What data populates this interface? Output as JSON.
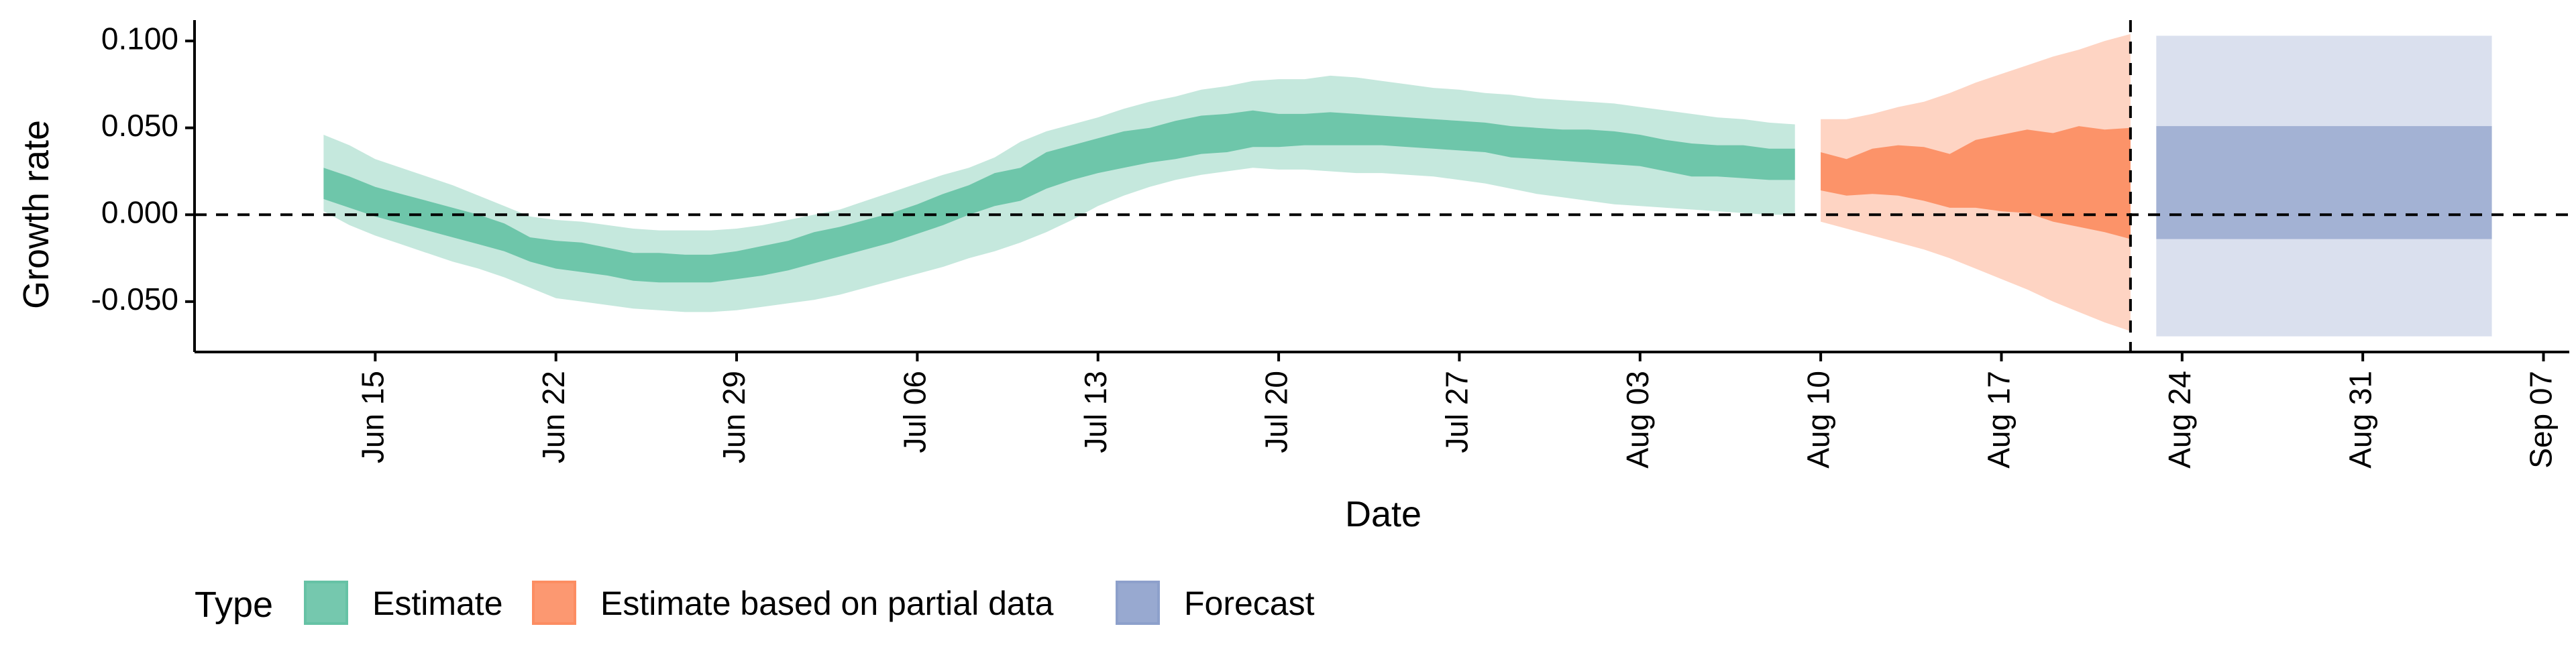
{
  "chart_data": {
    "type": "area",
    "xlabel": "Date",
    "ylabel": "Growth rate",
    "xlim": [
      "2020-06-08",
      "2020-09-08"
    ],
    "ylim": [
      -0.079,
      0.112
    ],
    "x_ticks": [
      "2020-06-15",
      "2020-06-22",
      "2020-06-29",
      "2020-07-06",
      "2020-07-13",
      "2020-07-20",
      "2020-07-27",
      "2020-08-03",
      "2020-08-10",
      "2020-08-17",
      "2020-08-24",
      "2020-08-31",
      "2020-09-07"
    ],
    "x_tick_labels": [
      "Jun 15",
      "Jun 22",
      "Jun 29",
      "Jul 06",
      "Jul 13",
      "Jul 20",
      "Jul 27",
      "Aug 03",
      "Aug 10",
      "Aug 17",
      "Aug 24",
      "Aug 31",
      "Sep 07"
    ],
    "y_ticks": [
      0.1,
      0.05,
      0.0,
      -0.05
    ],
    "y_tick_labels": [
      "0.100",
      "0.050",
      "0.000",
      "-0.050"
    ],
    "reference_lines": {
      "horizontal_y": 0.0,
      "vertical_x": "2020-08-22"
    },
    "grid": false,
    "legend": {
      "title": "Type",
      "position": "bottom-left",
      "entries": [
        "Estimate",
        "Estimate based on partial data",
        "Forecast"
      ]
    },
    "series": [
      {
        "name": "Estimate",
        "color": "#66C2A5",
        "x_start": "2020-06-13",
        "daily": {
          "outer_lower": [
            0.002,
            -0.006,
            -0.012,
            -0.017,
            -0.022,
            -0.027,
            -0.031,
            -0.036,
            -0.042,
            -0.048,
            -0.05,
            -0.052,
            -0.054,
            -0.055,
            -0.056,
            -0.056,
            -0.055,
            -0.053,
            -0.051,
            -0.049,
            -0.046,
            -0.042,
            -0.038,
            -0.034,
            -0.03,
            -0.025,
            -0.021,
            -0.016,
            -0.01,
            -0.003,
            0.005,
            0.011,
            0.016,
            0.02,
            0.023,
            0.025,
            0.027,
            0.026,
            0.026,
            0.025,
            0.024,
            0.024,
            0.023,
            0.022,
            0.02,
            0.018,
            0.015,
            0.012,
            0.01,
            0.008,
            0.006,
            0.005,
            0.004,
            0.003,
            0.002,
            0.001,
            0.0,
            0.0
          ],
          "inner_lower": [
            0.009,
            0.004,
            -0.001,
            -0.005,
            -0.009,
            -0.013,
            -0.017,
            -0.021,
            -0.027,
            -0.031,
            -0.033,
            -0.035,
            -0.038,
            -0.039,
            -0.039,
            -0.039,
            -0.037,
            -0.035,
            -0.032,
            -0.028,
            -0.024,
            -0.02,
            -0.016,
            -0.011,
            -0.006,
            0.0,
            0.005,
            0.008,
            0.015,
            0.02,
            0.024,
            0.027,
            0.03,
            0.032,
            0.035,
            0.036,
            0.039,
            0.039,
            0.04,
            0.04,
            0.04,
            0.04,
            0.039,
            0.038,
            0.037,
            0.036,
            0.033,
            0.032,
            0.031,
            0.03,
            0.029,
            0.028,
            0.025,
            0.022,
            0.022,
            0.021,
            0.02,
            0.02
          ],
          "inner_upper": [
            0.027,
            0.022,
            0.016,
            0.012,
            0.008,
            0.004,
            0.0,
            -0.005,
            -0.013,
            -0.015,
            -0.016,
            -0.019,
            -0.022,
            -0.022,
            -0.023,
            -0.023,
            -0.021,
            -0.018,
            -0.015,
            -0.01,
            -0.007,
            -0.003,
            0.001,
            0.006,
            0.012,
            0.017,
            0.024,
            0.027,
            0.036,
            0.04,
            0.044,
            0.048,
            0.05,
            0.054,
            0.057,
            0.058,
            0.06,
            0.058,
            0.058,
            0.059,
            0.058,
            0.057,
            0.056,
            0.055,
            0.054,
            0.053,
            0.051,
            0.05,
            0.049,
            0.049,
            0.048,
            0.046,
            0.043,
            0.041,
            0.04,
            0.04,
            0.038,
            0.038
          ],
          "outer_upper": [
            0.046,
            0.04,
            0.032,
            0.027,
            0.022,
            0.017,
            0.011,
            0.005,
            -0.001,
            -0.003,
            -0.004,
            -0.006,
            -0.008,
            -0.009,
            -0.009,
            -0.009,
            -0.008,
            -0.006,
            -0.003,
            0.0,
            0.003,
            0.008,
            0.013,
            0.018,
            0.023,
            0.027,
            0.033,
            0.042,
            0.048,
            0.052,
            0.056,
            0.061,
            0.065,
            0.068,
            0.072,
            0.074,
            0.077,
            0.078,
            0.078,
            0.08,
            0.079,
            0.077,
            0.075,
            0.073,
            0.072,
            0.07,
            0.069,
            0.067,
            0.066,
            0.065,
            0.064,
            0.062,
            0.06,
            0.058,
            0.056,
            0.055,
            0.053,
            0.052
          ]
        }
      },
      {
        "name": "Estimate based on partial data",
        "color": "#FC8D62",
        "x_start": "2020-08-10",
        "daily": {
          "outer_lower": [
            -0.004,
            -0.008,
            -0.012,
            -0.016,
            -0.02,
            -0.025,
            -0.031,
            -0.037,
            -0.043,
            -0.05,
            -0.056,
            -0.062,
            -0.067
          ],
          "inner_lower": [
            0.014,
            0.011,
            0.012,
            0.011,
            0.008,
            0.004,
            0.004,
            0.002,
            0.001,
            -0.004,
            -0.007,
            -0.01,
            -0.014
          ],
          "inner_upper": [
            0.036,
            0.032,
            0.038,
            0.04,
            0.039,
            0.035,
            0.043,
            0.046,
            0.049,
            0.047,
            0.051,
            0.049,
            0.05
          ],
          "outer_upper": [
            0.055,
            0.055,
            0.058,
            0.062,
            0.065,
            0.07,
            0.076,
            0.081,
            0.086,
            0.091,
            0.095,
            0.1,
            0.104
          ]
        }
      },
      {
        "name": "Forecast",
        "color": "#8DA0CB",
        "x_start": "2020-08-23",
        "x_end": "2020-09-05",
        "outer_lower": -0.07,
        "inner_lower": -0.014,
        "inner_upper": 0.051,
        "outer_upper": 0.103
      }
    ]
  }
}
